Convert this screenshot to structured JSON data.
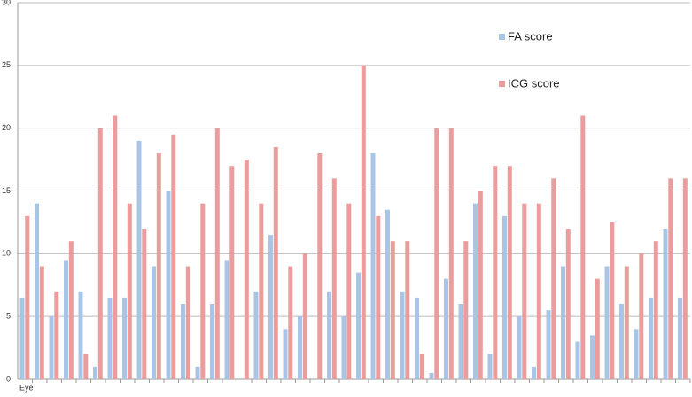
{
  "chart_data": {
    "type": "bar",
    "categories": [
      "Eye",
      null,
      null,
      null,
      null,
      null,
      null,
      null,
      null,
      null,
      null,
      null,
      null,
      null,
      null,
      null,
      null,
      null,
      null,
      null,
      null,
      null,
      null,
      null,
      null,
      null,
      null,
      null,
      null,
      null,
      null,
      null,
      null,
      null,
      null,
      null,
      null,
      null,
      null,
      null,
      null,
      null,
      null,
      null,
      null,
      null
    ],
    "series": [
      {
        "name": "FA score",
        "color": "#a9c5e6",
        "values": [
          6.5,
          14,
          5,
          9.5,
          7,
          1,
          6.5,
          6.5,
          19,
          9,
          15,
          6,
          1,
          6,
          9.5,
          0,
          7,
          11.5,
          4,
          5,
          0,
          7,
          5,
          8.5,
          18,
          13.5,
          7,
          6.5,
          0.5,
          8,
          6,
          14,
          2,
          13,
          5,
          1,
          5.5,
          9,
          3,
          3.5,
          9,
          6,
          4,
          6.5,
          12,
          6.5
        ]
      },
      {
        "name": "ICG score",
        "color": "#eb9c9c",
        "values": [
          13,
          9,
          7,
          11,
          2,
          20,
          21,
          14,
          12,
          18,
          19.5,
          9,
          14,
          20,
          17,
          17.5,
          14,
          18.5,
          9,
          10,
          18,
          16,
          14,
          25,
          13,
          11,
          11,
          2,
          20,
          20,
          11,
          15,
          17,
          17,
          14,
          14,
          16,
          12,
          21,
          8,
          12.5,
          9,
          10,
          11,
          16,
          16
        ]
      }
    ],
    "ylim": [
      0,
      30
    ],
    "yticks": [
      0,
      5,
      10,
      15,
      20,
      25,
      30
    ],
    "grid": true
  }
}
